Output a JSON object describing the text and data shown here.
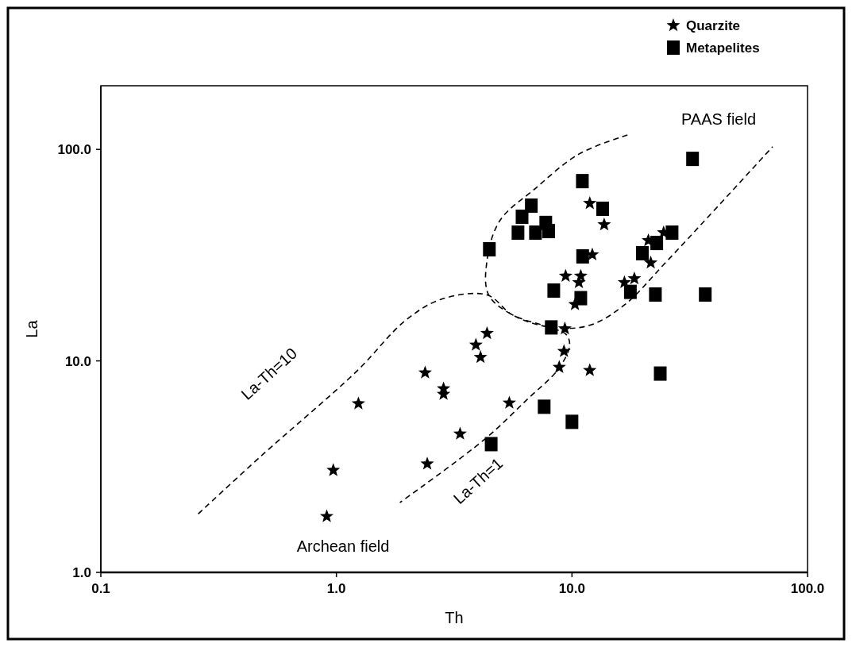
{
  "chart_data": {
    "type": "scatter",
    "xlabel": "Th",
    "ylabel": "La",
    "log": "xy",
    "grid": false,
    "legend": "top right",
    "xlim": [
      0.1,
      100
    ],
    "ylim": [
      1,
      200
    ],
    "xticks": [
      {
        "value": 0.1,
        "label": "0.1"
      },
      {
        "value": 1,
        "label": "1.0"
      },
      {
        "value": 10,
        "label": "10.0"
      },
      {
        "value": 100,
        "label": "100.0"
      }
    ],
    "yticks": [
      {
        "value": 1,
        "label": "1.0"
      },
      {
        "value": 10,
        "label": "10.0"
      },
      {
        "value": 100,
        "label": "100.0"
      }
    ],
    "series": [
      {
        "name": "Quarzite",
        "marker": "star",
        "color": "#000000",
        "x": [
          11.9,
          13.7,
          12.2,
          9.4,
          10.9,
          10.7,
          10.3,
          16.7,
          18.4,
          21.1,
          21.6,
          24.5,
          9.33,
          4.36,
          3.91,
          4.09,
          9.25,
          8.83,
          11.9,
          2.38,
          2.85,
          2.85,
          1.24,
          5.42,
          3.35,
          2.43,
          0.97,
          0.91
        ],
        "values": [
          55.6,
          44.1,
          31.8,
          25.2,
          25.2,
          23.5,
          18.5,
          23.5,
          24.5,
          37.1,
          29.1,
          40.4,
          14.2,
          13.5,
          11.9,
          10.4,
          11.1,
          9.33,
          9.02,
          8.79,
          7.39,
          6.96,
          6.28,
          6.33,
          4.52,
          3.26,
          3.04,
          1.84
        ]
      },
      {
        "name": "Metapelites",
        "marker": "square",
        "color": "#000000",
        "x": [
          32.5,
          11.07,
          13.5,
          6.72,
          6.14,
          5.9,
          7.0,
          7.74,
          7.96,
          4.46,
          11.1,
          8.37,
          10.9,
          8.17,
          19.9,
          22.9,
          26.6,
          17.7,
          22.6,
          36.8,
          23.7,
          7.62,
          10.0,
          4.54
        ],
        "values": [
          90.2,
          70.8,
          52.4,
          54.2,
          48.0,
          40.4,
          40.4,
          44.9,
          41.1,
          33.7,
          31.2,
          21.5,
          19.8,
          14.4,
          32.3,
          36.1,
          40.4,
          21.2,
          20.6,
          20.6,
          8.71,
          6.07,
          5.15,
          4.04
        ]
      },
      {
        "type": "line",
        "marker": "none",
        "line_style": "dashed",
        "color": "#000000",
        "x": [
          0.259,
          0.479,
          1.22,
          1.96,
          2.8,
          4.36,
          5.59,
          8.05,
          9.47,
          9.77,
          8.77,
          6.43,
          4.26,
          1.86
        ],
        "values": [
          1.89,
          3.55,
          8.94,
          15.5,
          19.6,
          20.5,
          16.5,
          14.4,
          13.3,
          11.8,
          9.18,
          6.55,
          4.26,
          2.14
        ]
      },
      {
        "type": "line",
        "marker": "none",
        "line_style": "dashed",
        "color": "#000000",
        "x": [
          17.2,
          10.7,
          6.95,
          4.94,
          4.36,
          4.43,
          5.77,
          8.24,
          11.8,
          16.6,
          25.5,
          71.1
        ],
        "values": [
          117,
          95,
          65,
          46,
          29.9,
          20.5,
          16.2,
          14.4,
          14.7,
          18.3,
          29.9,
          103
        ]
      }
    ],
    "annotations": [
      "PAAS field",
      "La-Th=10",
      "La-Th=1",
      "Archean field"
    ]
  }
}
